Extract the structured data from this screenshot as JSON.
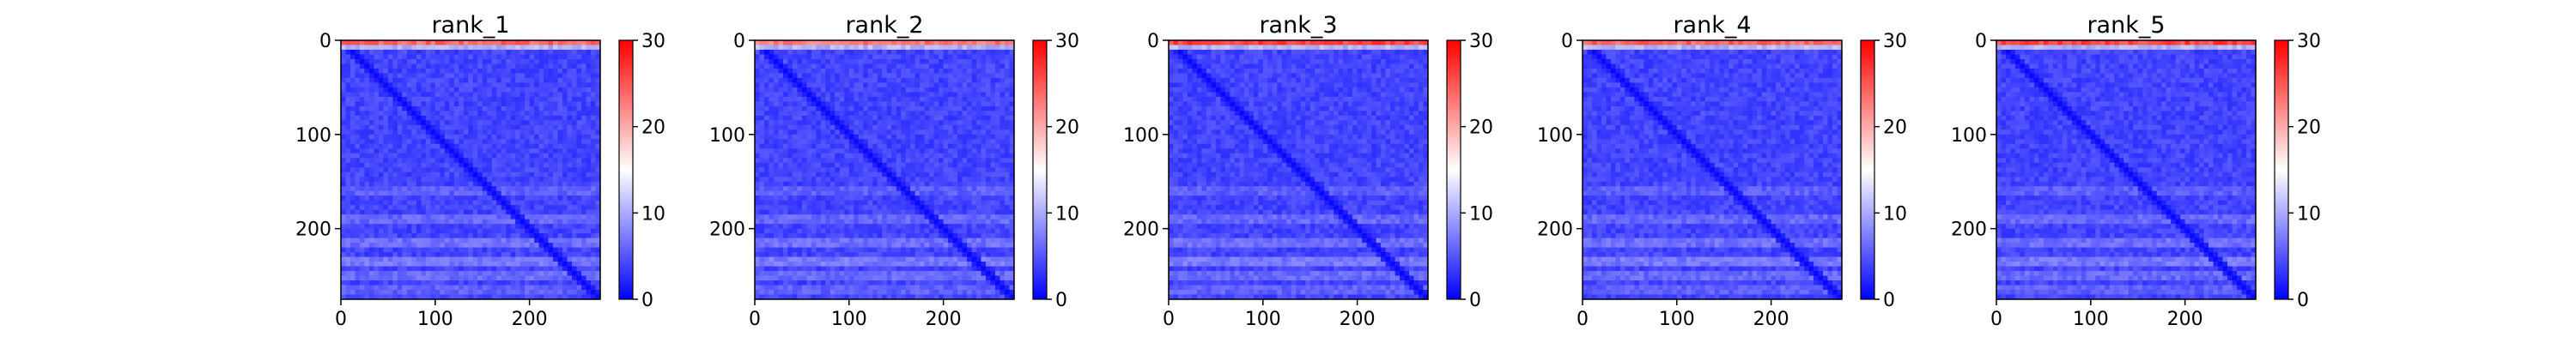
{
  "chart_data": [
    {
      "type": "heatmap",
      "title": "rank_1",
      "x_ticks": [
        0,
        100,
        200
      ],
      "y_ticks": [
        0,
        100,
        200
      ],
      "xlim": [
        0,
        275
      ],
      "ylim": [
        275,
        0
      ],
      "colorbar": {
        "ticks": [
          0,
          10,
          20,
          30
        ],
        "range": [
          0,
          30
        ],
        "colormap": "bwr"
      },
      "matrix_size": 275,
      "top_rows_value": 26,
      "diagonal_value": 0.5,
      "background_value": 4
    },
    {
      "type": "heatmap",
      "title": "rank_2",
      "x_ticks": [
        0,
        100,
        200
      ],
      "y_ticks": [
        0,
        100,
        200
      ],
      "xlim": [
        0,
        275
      ],
      "ylim": [
        275,
        0
      ],
      "colorbar": {
        "ticks": [
          0,
          10,
          20,
          30
        ],
        "range": [
          0,
          30
        ],
        "colormap": "bwr"
      },
      "matrix_size": 275,
      "top_rows_value": 25,
      "diagonal_value": 0.5,
      "background_value": 4
    },
    {
      "type": "heatmap",
      "title": "rank_3",
      "x_ticks": [
        0,
        100,
        200
      ],
      "y_ticks": [
        0,
        100,
        200
      ],
      "xlim": [
        0,
        275
      ],
      "ylim": [
        275,
        0
      ],
      "colorbar": {
        "ticks": [
          0,
          10,
          20,
          30
        ],
        "range": [
          0,
          30
        ],
        "colormap": "bwr"
      },
      "matrix_size": 275,
      "top_rows_value": 28,
      "diagonal_value": 0.5,
      "background_value": 4
    },
    {
      "type": "heatmap",
      "title": "rank_4",
      "x_ticks": [
        0,
        100,
        200
      ],
      "y_ticks": [
        0,
        100,
        200
      ],
      "xlim": [
        0,
        275
      ],
      "ylim": [
        275,
        0
      ],
      "colorbar": {
        "ticks": [
          0,
          10,
          20,
          30
        ],
        "range": [
          0,
          30
        ],
        "colormap": "bwr"
      },
      "matrix_size": 275,
      "top_rows_value": 26,
      "diagonal_value": 0.5,
      "background_value": 4
    },
    {
      "type": "heatmap",
      "title": "rank_5",
      "x_ticks": [
        0,
        100,
        200
      ],
      "y_ticks": [
        0,
        100,
        200
      ],
      "xlim": [
        0,
        275
      ],
      "ylim": [
        275,
        0
      ],
      "colorbar": {
        "ticks": [
          0,
          10,
          20,
          30
        ],
        "range": [
          0,
          30
        ],
        "colormap": "bwr"
      },
      "matrix_size": 275,
      "top_rows_value": 28,
      "diagonal_value": 0.5,
      "background_value": 4
    }
  ]
}
